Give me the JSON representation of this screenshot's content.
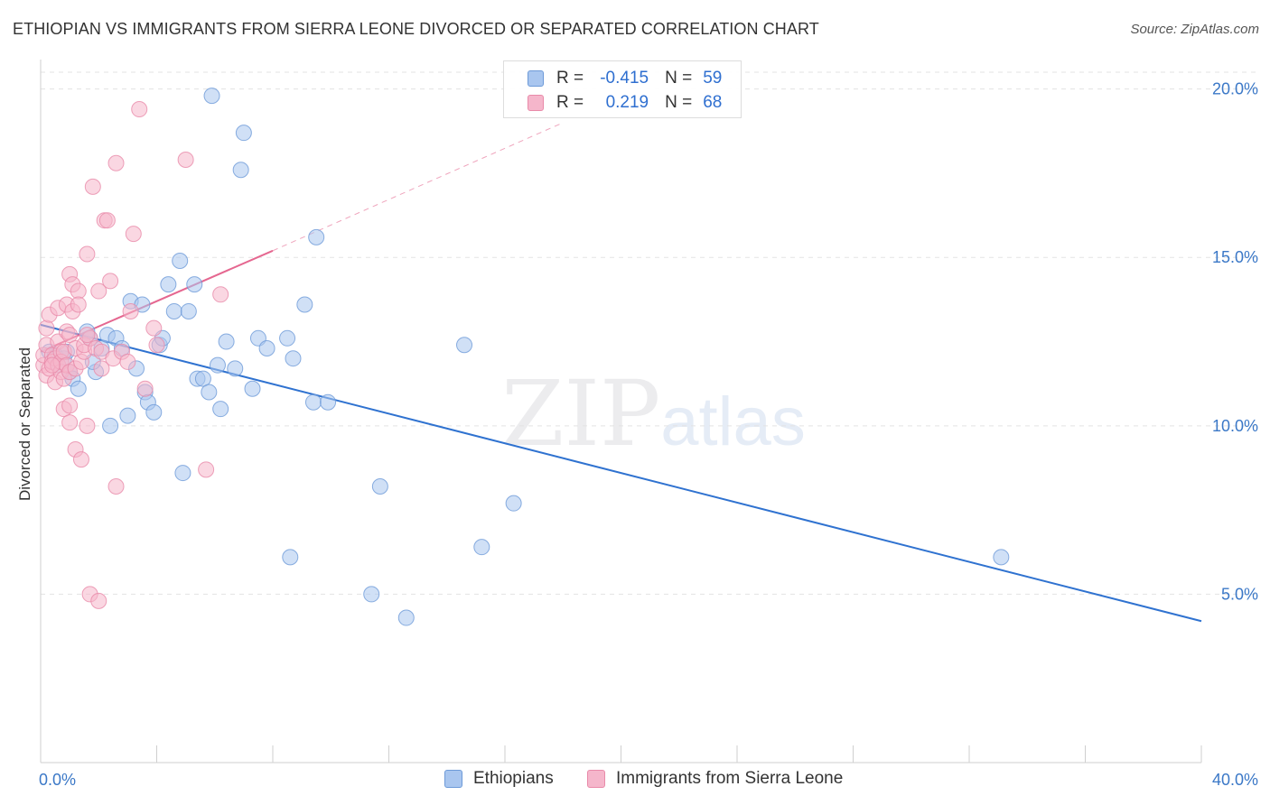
{
  "header": {
    "title": "ETHIOPIAN VS IMMIGRANTS FROM SIERRA LEONE DIVORCED OR SEPARATED CORRELATION CHART",
    "source": "Source: ZipAtlas.com"
  },
  "watermark": {
    "zip": "ZIP",
    "atlas": "atlas"
  },
  "colors": {
    "blue_fill": "#a9c6ef",
    "blue_stroke": "#6d9ad8",
    "blue_line": "#2f72d0",
    "pink_fill": "#f5b6cb",
    "pink_stroke": "#e98aa9",
    "pink_line": "#e56790",
    "grid": "#e3e3e3",
    "tick_text": "#3b78c7"
  },
  "legend": {
    "rows": [
      {
        "r_label": "R =",
        "r_value": "-0.415",
        "n_label": "N =",
        "n_value": "59"
      },
      {
        "r_label": "R =",
        "r_value": "0.219",
        "n_label": "N =",
        "n_value": "68"
      }
    ]
  },
  "bottom_legend": {
    "series1": "Ethiopians",
    "series2": "Immigrants from Sierra Leone"
  },
  "chart_data": {
    "type": "scatter",
    "title": "ETHIOPIAN VS IMMIGRANTS FROM SIERRA LEONE DIVORCED OR SEPARATED CORRELATION CHART",
    "xlabel": "",
    "ylabel": "Divorced or Separated",
    "xlim": [
      0,
      40
    ],
    "ylim": [
      0,
      20.5
    ],
    "x_tick_labels": [
      "0.0%",
      "40.0%"
    ],
    "y_ticks": [
      5,
      10,
      15,
      20
    ],
    "y_tick_labels": [
      "5.0%",
      "10.0%",
      "15.0%",
      "20.0%"
    ],
    "grid": "horizontal dashed",
    "legend_position": "top-center",
    "series": [
      {
        "name": "Ethiopians",
        "r": -0.415,
        "n": 59,
        "trend": {
          "x": [
            0,
            40
          ],
          "y": [
            13.0,
            4.2
          ],
          "style": "solid"
        },
        "points": [
          [
            0.3,
            12.2
          ],
          [
            0.5,
            12.1
          ],
          [
            0.6,
            11.8
          ],
          [
            0.8,
            12.0
          ],
          [
            1.0,
            11.6
          ],
          [
            1.1,
            11.4
          ],
          [
            1.3,
            11.1
          ],
          [
            1.6,
            12.8
          ],
          [
            1.7,
            12.6
          ],
          [
            1.9,
            11.6
          ],
          [
            2.1,
            12.3
          ],
          [
            2.3,
            12.7
          ],
          [
            2.4,
            10.0
          ],
          [
            2.6,
            12.6
          ],
          [
            2.8,
            12.3
          ],
          [
            3.0,
            10.3
          ],
          [
            3.1,
            13.7
          ],
          [
            3.3,
            11.7
          ],
          [
            3.5,
            13.6
          ],
          [
            3.6,
            11.0
          ],
          [
            3.7,
            10.7
          ],
          [
            3.9,
            10.4
          ],
          [
            4.1,
            12.4
          ],
          [
            4.2,
            12.6
          ],
          [
            4.4,
            14.2
          ],
          [
            4.6,
            13.4
          ],
          [
            4.8,
            14.9
          ],
          [
            4.9,
            8.6
          ],
          [
            5.1,
            13.4
          ],
          [
            5.3,
            14.2
          ],
          [
            5.4,
            11.4
          ],
          [
            5.6,
            11.4
          ],
          [
            5.8,
            11.0
          ],
          [
            5.9,
            19.8
          ],
          [
            6.1,
            11.8
          ],
          [
            6.2,
            10.5
          ],
          [
            6.4,
            12.5
          ],
          [
            6.7,
            11.7
          ],
          [
            6.9,
            17.6
          ],
          [
            7.0,
            18.7
          ],
          [
            7.3,
            11.1
          ],
          [
            7.5,
            12.6
          ],
          [
            7.8,
            12.3
          ],
          [
            8.5,
            12.6
          ],
          [
            8.6,
            6.1
          ],
          [
            8.7,
            12.0
          ],
          [
            9.1,
            13.6
          ],
          [
            9.4,
            10.7
          ],
          [
            9.5,
            15.6
          ],
          [
            9.9,
            10.7
          ],
          [
            11.4,
            5.0
          ],
          [
            11.7,
            8.2
          ],
          [
            12.6,
            4.3
          ],
          [
            14.6,
            12.4
          ],
          [
            15.2,
            6.4
          ],
          [
            16.3,
            7.7
          ],
          [
            33.1,
            6.1
          ],
          [
            0.9,
            12.2
          ],
          [
            1.8,
            11.9
          ]
        ]
      },
      {
        "name": "Immigrants from Sierra Leone",
        "r": 0.219,
        "n": 68,
        "trend": {
          "x": [
            0,
            8
          ],
          "y": [
            12.2,
            15.2
          ],
          "style": "solid",
          "extended_to": [
            18,
            19.0
          ],
          "extended_style": "dashed"
        },
        "points": [
          [
            0.1,
            11.8
          ],
          [
            0.1,
            12.1
          ],
          [
            0.2,
            11.5
          ],
          [
            0.2,
            12.4
          ],
          [
            0.2,
            12.9
          ],
          [
            0.3,
            13.3
          ],
          [
            0.3,
            11.7
          ],
          [
            0.4,
            12.1
          ],
          [
            0.4,
            11.9
          ],
          [
            0.5,
            12.0
          ],
          [
            0.5,
            11.3
          ],
          [
            0.6,
            11.8
          ],
          [
            0.6,
            12.5
          ],
          [
            0.6,
            13.5
          ],
          [
            0.7,
            12.2
          ],
          [
            0.7,
            11.6
          ],
          [
            0.7,
            11.9
          ],
          [
            0.8,
            11.4
          ],
          [
            0.8,
            10.5
          ],
          [
            0.8,
            12.2
          ],
          [
            0.9,
            12.8
          ],
          [
            0.9,
            13.6
          ],
          [
            0.9,
            11.8
          ],
          [
            1.0,
            10.1
          ],
          [
            1.0,
            11.6
          ],
          [
            1.0,
            12.7
          ],
          [
            1.0,
            10.6
          ],
          [
            1.0,
            14.5
          ],
          [
            1.1,
            14.2
          ],
          [
            1.1,
            13.4
          ],
          [
            1.2,
            12.3
          ],
          [
            1.2,
            11.7
          ],
          [
            1.2,
            9.3
          ],
          [
            1.3,
            14.0
          ],
          [
            1.3,
            13.6
          ],
          [
            1.4,
            9.0
          ],
          [
            1.4,
            11.9
          ],
          [
            1.5,
            12.2
          ],
          [
            1.5,
            12.4
          ],
          [
            1.6,
            15.1
          ],
          [
            1.6,
            10.0
          ],
          [
            1.7,
            12.6
          ],
          [
            1.7,
            5.0
          ],
          [
            1.8,
            17.1
          ],
          [
            1.9,
            12.3
          ],
          [
            2.0,
            14.0
          ],
          [
            2.0,
            4.8
          ],
          [
            2.1,
            12.2
          ],
          [
            2.1,
            11.7
          ],
          [
            2.2,
            16.1
          ],
          [
            2.3,
            16.1
          ],
          [
            2.4,
            14.3
          ],
          [
            2.5,
            12.0
          ],
          [
            2.6,
            17.8
          ],
          [
            2.6,
            8.2
          ],
          [
            2.8,
            12.2
          ],
          [
            3.0,
            11.9
          ],
          [
            3.1,
            13.4
          ],
          [
            3.2,
            15.7
          ],
          [
            3.4,
            19.4
          ],
          [
            3.6,
            11.1
          ],
          [
            3.9,
            12.9
          ],
          [
            4.0,
            12.4
          ],
          [
            5.0,
            17.9
          ],
          [
            5.7,
            8.7
          ],
          [
            6.2,
            13.9
          ],
          [
            1.6,
            12.7
          ],
          [
            0.4,
            11.8
          ]
        ]
      }
    ]
  }
}
